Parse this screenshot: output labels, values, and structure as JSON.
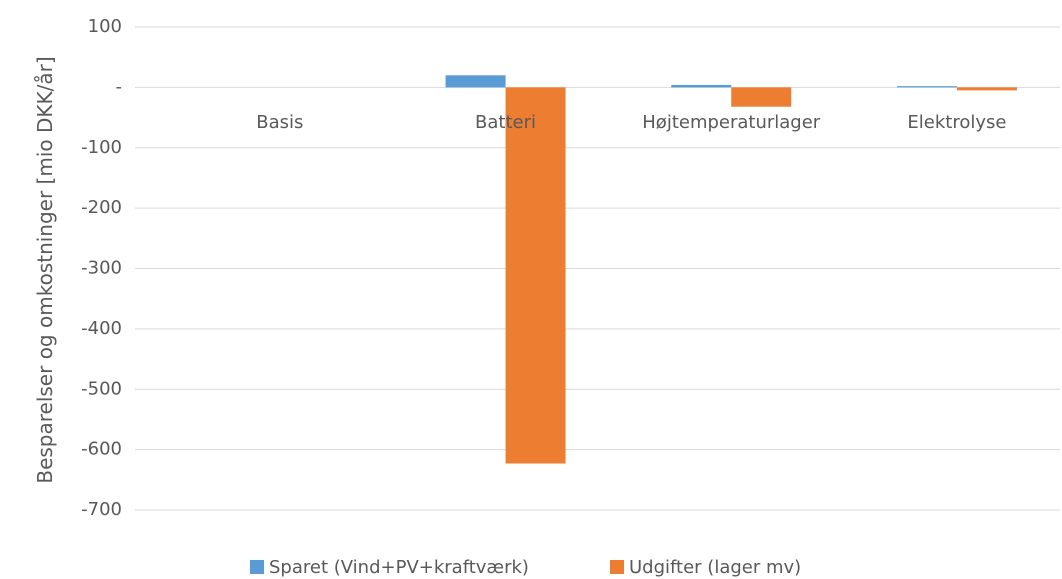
{
  "chart_data": {
    "type": "bar",
    "y_label": "Besparelser og omkostninger [mio DKK/år]",
    "categories": [
      "Basis",
      "Batteri",
      "Højtemperaturlager",
      "Elektrolyse"
    ],
    "series": [
      {
        "name": "Sparet (Vind+PV+kraftværk)",
        "color": "#5b9bd5",
        "values": [
          0,
          20,
          4,
          2
        ]
      },
      {
        "name": "Udgifter (lager mv)",
        "color": "#ed7d31",
        "values": [
          0,
          -623,
          -32,
          -5
        ]
      }
    ],
    "ylim": [
      -700,
      100
    ],
    "yticks": [
      100,
      {
        "value": 0,
        "label": "-"
      },
      -100,
      -200,
      -300,
      -400,
      -500,
      -600,
      -700
    ],
    "grid": true
  }
}
